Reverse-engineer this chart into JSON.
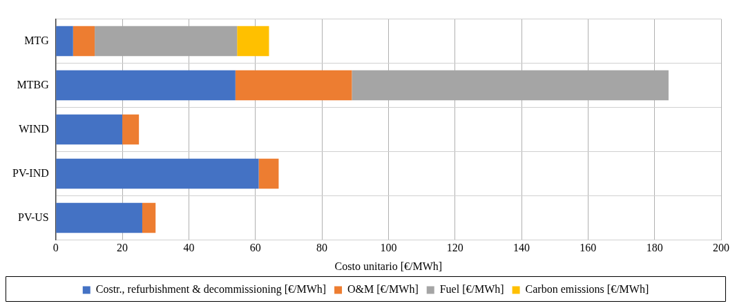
{
  "chart_data": {
    "type": "bar",
    "orientation": "horizontal",
    "stacked": true,
    "xlabel": "Costo unitario [€/MWh]",
    "categories": [
      "MTG",
      "MTBG",
      "WIND",
      "PV-IND",
      "PV-US"
    ],
    "series": [
      {
        "name": "Costr., refurbishment & decommissioning [€/MWh]",
        "color": "#4472c4",
        "values": [
          5.2,
          54,
          20,
          61,
          26
        ]
      },
      {
        "name": "O&M [€/MWh]",
        "color": "#ed7d31",
        "values": [
          6.5,
          35,
          5,
          6,
          4
        ]
      },
      {
        "name": "Fuel [€/MWh]",
        "color": "#a5a5a5",
        "values": [
          42.8,
          95.2,
          null,
          null,
          null
        ]
      },
      {
        "name": "Carbon emissions [€/MWh]",
        "color": "#ffc000",
        "values": [
          9.6,
          null,
          null,
          null,
          null
        ]
      }
    ],
    "xlim": [
      0,
      200
    ],
    "xticks": [
      0,
      20,
      40,
      60,
      80,
      100,
      120,
      140,
      160,
      180,
      200
    ],
    "grid": true,
    "legend": "bottom"
  }
}
